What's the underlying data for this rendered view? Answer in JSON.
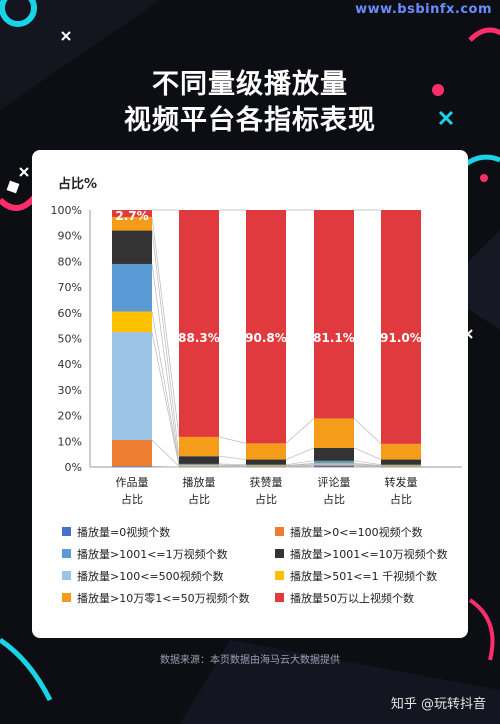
{
  "watermark": "www.bsbinfx.com",
  "title_line1": "不同量级播放量",
  "title_line2": "视频平台各指标表现",
  "source": "数据来源：本页数据由海马云大数据提供",
  "brand": "知乎 @玩转抖音",
  "colors": {
    "zero": "#4472c4",
    "lt100": "#ed7d31",
    "1001_1w": "#5b9bd5",
    "1001_10w": "#333333",
    "100_500": "#9dc3e6",
    "501_1k": "#ffc000",
    "10w_50w": "#f59c1a",
    "gt50w": "#e03a3e"
  },
  "chart_data": {
    "type": "bar",
    "stacked": true,
    "ylabel": "占比%",
    "ylim": [
      0,
      100
    ],
    "yticks": [
      "0%",
      "10%",
      "20%",
      "30%",
      "40%",
      "50%",
      "60%",
      "70%",
      "80%",
      "90%",
      "100%"
    ],
    "categories": [
      [
        "作品量",
        "占比"
      ],
      [
        "播放量",
        "占比"
      ],
      [
        "获赞量",
        "占比"
      ],
      [
        "评论量",
        "占比"
      ],
      [
        "转发量",
        "占比"
      ]
    ],
    "series": [
      {
        "name": "播放量=0视频个数",
        "key": "zero",
        "values": [
          0.3,
          0.0,
          0.0,
          0.5,
          0.0
        ]
      },
      {
        "name": "播放量>0<=100视频个数",
        "key": "lt100",
        "values": [
          10.2,
          0.3,
          0.2,
          0.3,
          0.2
        ]
      },
      {
        "name": "播放量>100<=500视频个数",
        "key": "100_500",
        "values": [
          42.0,
          0.3,
          0.2,
          0.4,
          0.2
        ]
      },
      {
        "name": "播放量>501<=1 千视频个数",
        "key": "501_1k",
        "values": [
          8.0,
          0.2,
          0.2,
          0.2,
          0.2
        ]
      },
      {
        "name": "播放量>1001<=1万视频个数",
        "key": "1001_1w",
        "values": [
          18.5,
          0.4,
          0.3,
          1.0,
          0.3
        ]
      },
      {
        "name": "播放量>1001<=10万视频个数",
        "key": "1001_10w",
        "values": [
          13.0,
          3.0,
          2.0,
          5.0,
          2.0
        ]
      },
      {
        "name": "播放量>10万零1<=50万视频个数",
        "key": "10w_50w",
        "values": [
          5.3,
          7.5,
          6.3,
          11.5,
          6.1
        ]
      },
      {
        "name": "播放量50万以上视频个数",
        "key": "gt50w",
        "values": [
          2.7,
          88.3,
          90.8,
          81.1,
          91.0
        ]
      }
    ],
    "data_labels": [
      "2.7%",
      "88.3%",
      "90.8%",
      "81.1%",
      "91.0%"
    ],
    "legend": {
      "placement": "bottom",
      "left": [
        {
          "label": "播放量=0视频个数",
          "key": "zero"
        },
        {
          "label": "播放量>1001<=1万视频个数",
          "key": "1001_1w"
        },
        {
          "label": "播放量>100<=500视频个数",
          "key": "100_500"
        },
        {
          "label": "播放量>10万零1<=50万视频个数",
          "key": "10w_50w"
        }
      ],
      "right": [
        {
          "label": "播放量>0<=100视频个数",
          "key": "lt100"
        },
        {
          "label": "播放量>1001<=10万视频个数",
          "key": "1001_10w"
        },
        {
          "label": "播放量>501<=1 千视频个数",
          "key": "501_1k"
        },
        {
          "label": "播放量50万以上视频个数",
          "key": "gt50w"
        }
      ]
    }
  }
}
